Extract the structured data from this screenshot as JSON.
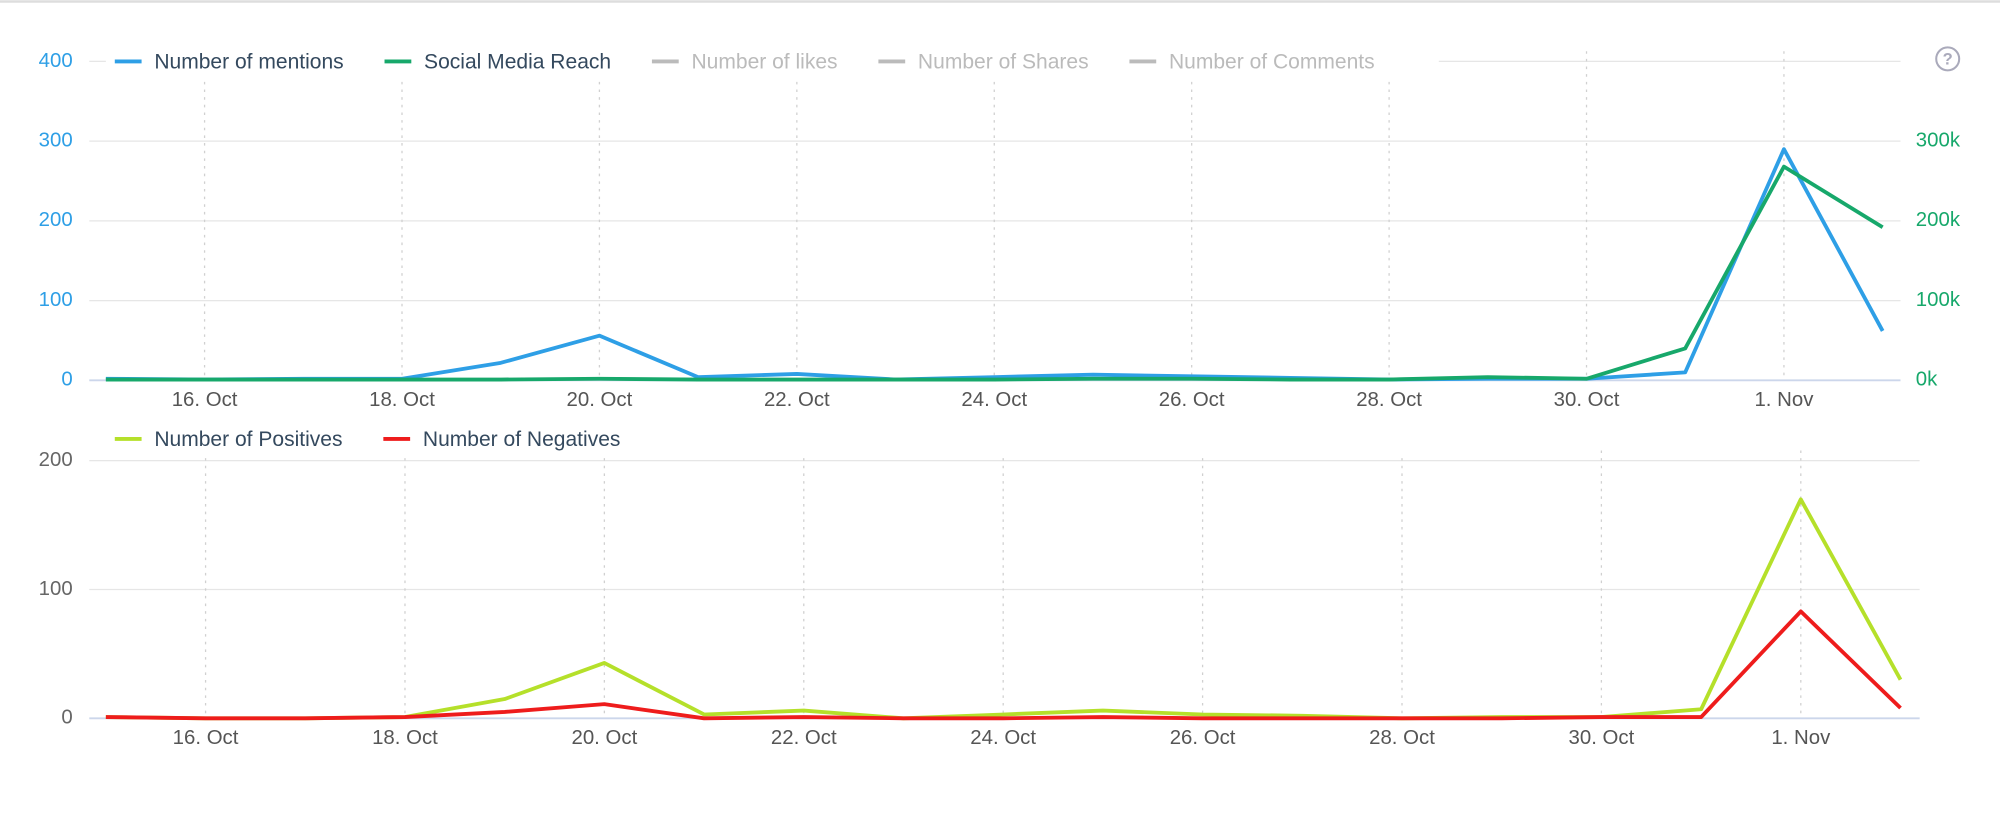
{
  "chart_data": [
    {
      "type": "line",
      "categories": [
        null,
        "16. Oct",
        null,
        "18. Oct",
        null,
        "20. Oct",
        null,
        "22. Oct",
        null,
        "24. Oct",
        null,
        "26. Oct",
        null,
        "28. Oct",
        null,
        "30. Oct",
        null,
        "1. Nov",
        null
      ],
      "series": [
        {
          "name": "Number of mentions",
          "color": "#2e9fe6",
          "values": [
            2,
            1,
            2,
            2,
            22,
            56,
            4,
            8,
            1,
            4,
            7,
            5,
            3,
            1,
            2,
            2,
            10,
            290,
            62
          ]
        },
        {
          "name": "Social Media Reach",
          "color": "#17a86b",
          "axis": "y2",
          "values": [
            1000,
            1000,
            1000,
            1000,
            1000,
            2000,
            1000,
            1000,
            1000,
            1000,
            2000,
            2000,
            1000,
            1000,
            4000,
            2000,
            40000,
            268000,
            192000
          ]
        }
      ],
      "hidden_series": [
        "Number of likes",
        "Number of Shares",
        "Number of Comments"
      ],
      "ylim": [
        0,
        400
      ],
      "yticks": [
        0,
        100,
        200,
        300,
        400
      ],
      "y2lim": [
        0,
        400000
      ],
      "y2ticks": [
        {
          "value": 0,
          "label": "0k"
        },
        {
          "value": 100000,
          "label": "100k"
        },
        {
          "value": 200000,
          "label": "200k"
        },
        {
          "value": 300000,
          "label": "300k"
        }
      ],
      "grid": true,
      "legend": "top-left"
    },
    {
      "type": "line",
      "categories": [
        null,
        "16. Oct",
        null,
        "18. Oct",
        null,
        "20. Oct",
        null,
        "22. Oct",
        null,
        "24. Oct",
        null,
        "26. Oct",
        null,
        "28. Oct",
        null,
        "30. Oct",
        null,
        "1. Nov",
        null
      ],
      "series": [
        {
          "name": "Number of Positives",
          "color": "#b5e02a",
          "values": [
            1,
            0,
            0,
            1,
            15,
            43,
            3,
            6,
            0,
            3,
            6,
            3,
            2,
            0,
            1,
            1,
            7,
            170,
            30
          ]
        },
        {
          "name": "Number of Negatives",
          "color": "#ee1c1c",
          "values": [
            1,
            0,
            0,
            1,
            5,
            11,
            0,
            1,
            0,
            0,
            1,
            0,
            0,
            0,
            0,
            1,
            1,
            83,
            8
          ]
        }
      ],
      "ylim": [
        0,
        200
      ],
      "yticks": [
        0,
        100,
        200
      ],
      "grid": true,
      "legend": "top-left"
    }
  ]
}
